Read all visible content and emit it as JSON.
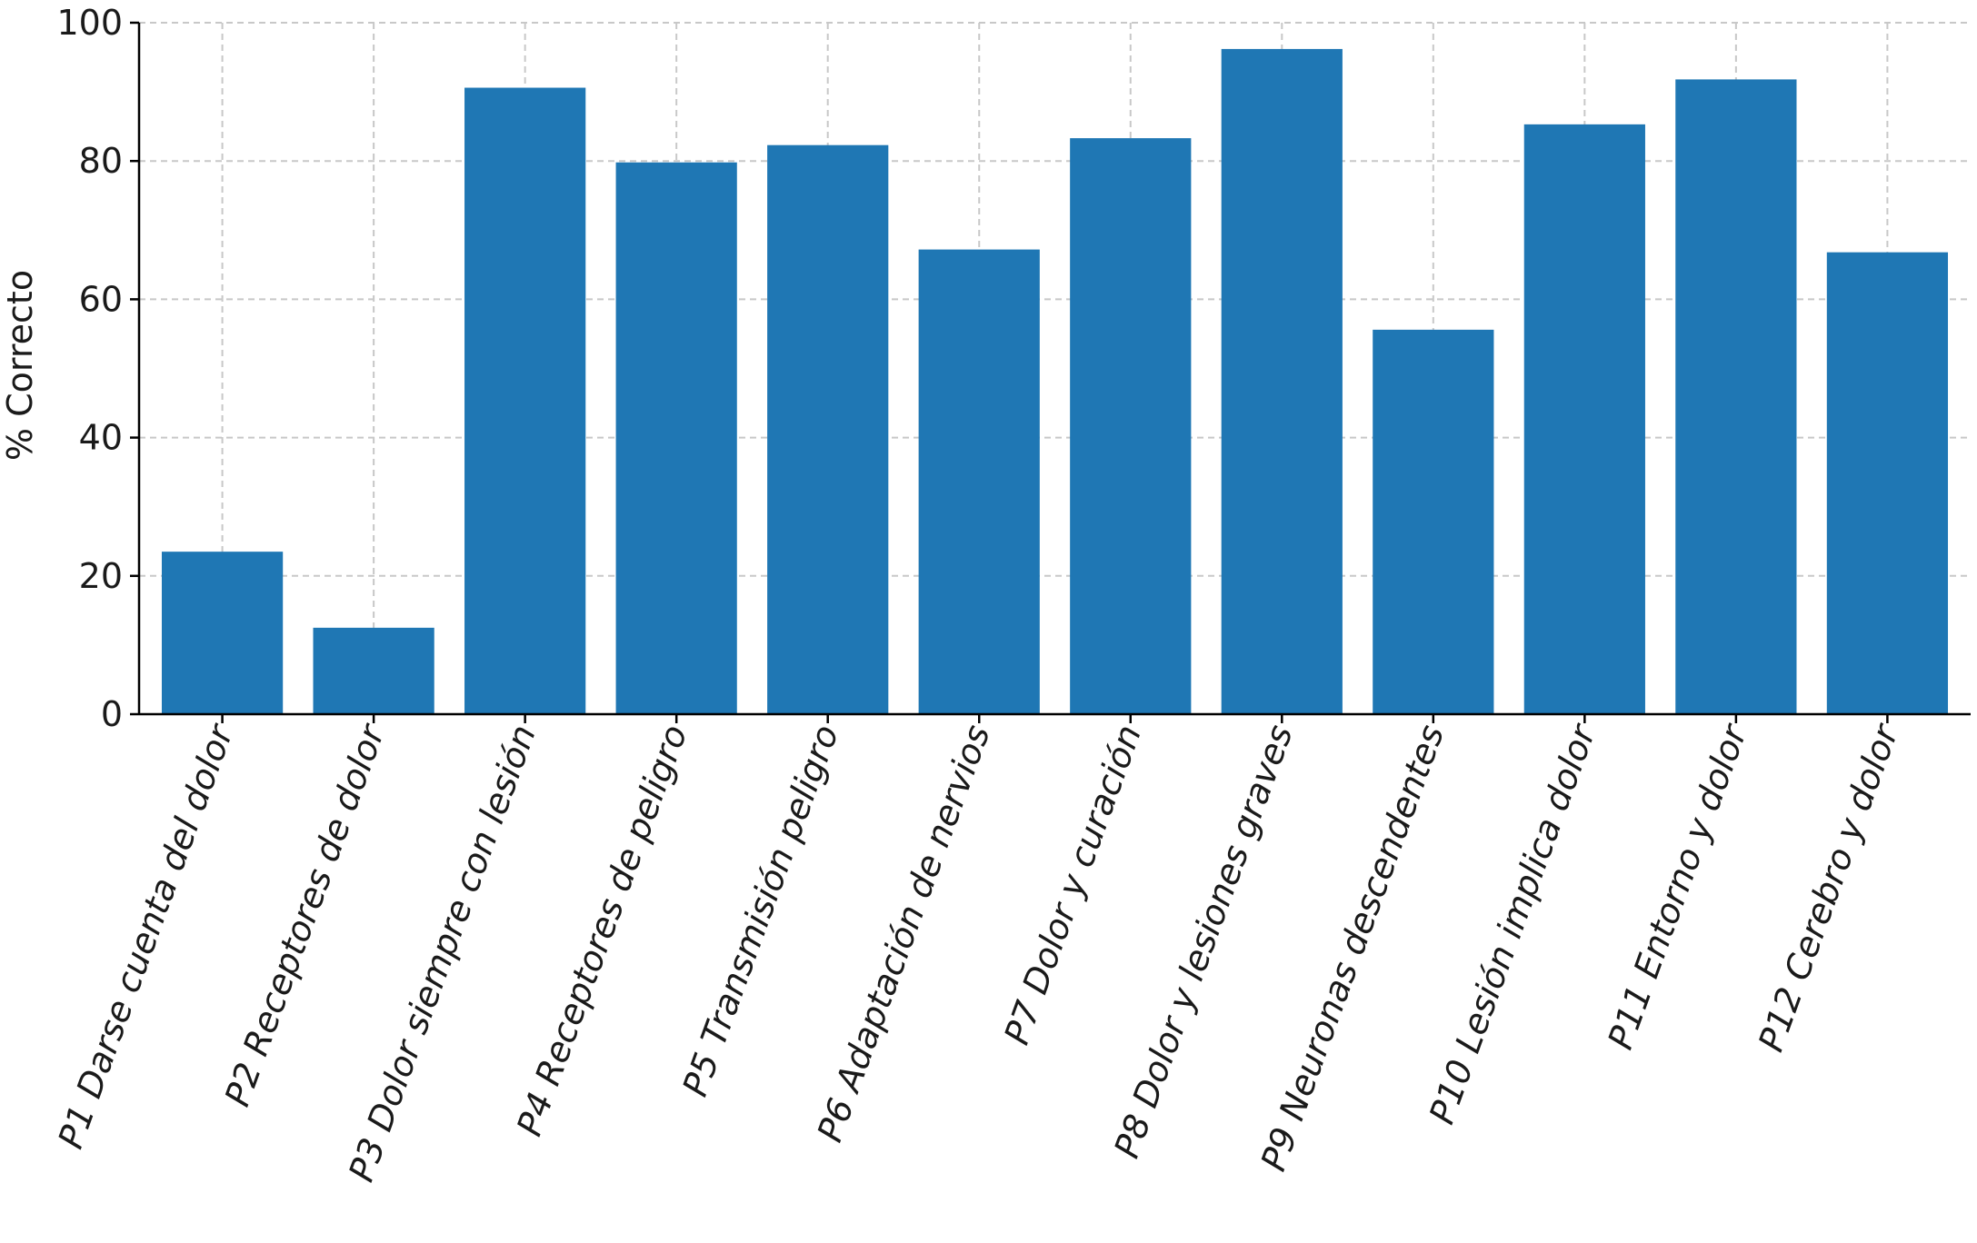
{
  "chart_data": {
    "type": "bar",
    "title": "",
    "xlabel": "",
    "ylabel": "% Correcto",
    "ylim": [
      0,
      100
    ],
    "yticks": [
      0,
      20,
      40,
      60,
      80,
      100
    ],
    "grid": true,
    "bar_color": "#1f77b4",
    "categories": [
      "P1 Darse cuenta del dolor",
      "P2 Receptores de dolor",
      "P3 Dolor siempre con lesión",
      "P4 Receptores de peligro",
      "P5 Transmisión peligro",
      "P6 Adaptación de nervios",
      "P7 Dolor y curación",
      "P8 Dolor y lesiones graves",
      "P9 Neuronas descendentes",
      "P10 Lesión implica dolor",
      "P11 Entorno y dolor",
      "P12 Cerebro y dolor"
    ],
    "values": [
      23.5,
      12.5,
      90.6,
      79.8,
      82.3,
      67.2,
      83.3,
      96.2,
      55.6,
      85.3,
      91.8,
      66.8
    ]
  }
}
